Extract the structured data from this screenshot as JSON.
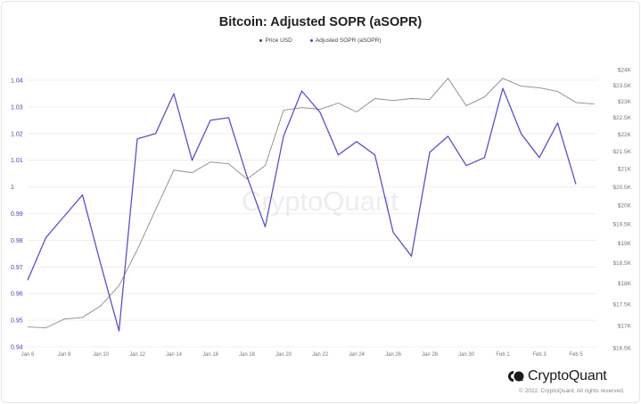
{
  "header": {
    "title": "Bitcoin: Adjusted SOPR (aSOPR)"
  },
  "legend": [
    {
      "label": "Price USD",
      "color": "#444444"
    },
    {
      "label": "Adjusted SOPR (aSOPR)",
      "color": "#4a45b5"
    }
  ],
  "watermark": "CryptoQuant",
  "footer": {
    "brand": "CryptoQuant",
    "copyright": "© 2022. CryptoQuant. All rights reserved."
  },
  "colors": {
    "sopr_line": "#5a52c8",
    "price_line": "#8a8a8a",
    "grid": "#ececf0",
    "left_axis_text": "#4a45b5"
  },
  "chart_data": {
    "type": "line",
    "title": "Bitcoin: Adjusted SOPR (aSOPR)",
    "xlabel": "",
    "ylabel_left": "Adjusted SOPR (aSOPR)",
    "ylabel_right": "Price USD",
    "legend_position": "top",
    "grid": true,
    "x": [
      "Jan 6",
      "Jan 7",
      "Jan 8",
      "Jan 9",
      "Jan 10",
      "Jan 11",
      "Jan 12",
      "Jan 13",
      "Jan 14",
      "Jan 15",
      "Jan 16",
      "Jan 17",
      "Jan 18",
      "Jan 19",
      "Jan 20",
      "Jan 21",
      "Jan 22",
      "Jan 23",
      "Jan 24",
      "Jan 25",
      "Jan 26",
      "Jan 27",
      "Jan 28",
      "Jan 29",
      "Jan 30",
      "Jan 31",
      "Feb 1",
      "Feb 2",
      "Feb 3",
      "Feb 4",
      "Feb 5",
      "Feb 6"
    ],
    "x_tick_labels": [
      "Jan 6",
      "Jan 8",
      "Jan 10",
      "Jan 12",
      "Jan 14",
      "Jan 16",
      "Jan 18",
      "Jan 20",
      "Jan 22",
      "Jan 24",
      "Jan 26",
      "Jan 28",
      "Jan 30",
      "Feb 1",
      "Feb 3",
      "Feb 5"
    ],
    "y_left_ticks": [
      "1.04",
      "1.03",
      "1.02",
      "1.01",
      "1",
      "0.99",
      "0.98",
      "0.97",
      "0.96",
      "0.95",
      "0.94"
    ],
    "y_left_range": [
      0.94,
      1.04
    ],
    "y_right_ticks": [
      "$24K",
      "$23.5K",
      "$23K",
      "$22.5K",
      "$22K",
      "$21.5K",
      "$21K",
      "$20.5K",
      "$20K",
      "$19.5K",
      "$19K",
      "$18.5K",
      "$18K",
      "$17.5K",
      "$17K",
      "$16.5K"
    ],
    "y_right_range": [
      16500,
      24000
    ],
    "y_right_scale": "log",
    "series": [
      {
        "name": "Adjusted SOPR (aSOPR)",
        "axis": "left",
        "values": [
          0.965,
          0.981,
          0.989,
          0.997,
          0.971,
          0.946,
          1.018,
          1.02,
          1.035,
          1.01,
          1.025,
          1.026,
          1.004,
          0.985,
          1.019,
          1.036,
          1.028,
          1.012,
          1.017,
          1.012,
          0.983,
          0.974,
          1.013,
          1.019,
          1.008,
          1.011,
          1.037,
          1.02,
          1.011,
          1.024,
          1.001,
          null
        ]
      },
      {
        "name": "Price USD",
        "axis": "right",
        "values": [
          16970,
          16950,
          17150,
          17190,
          17460,
          17940,
          18830,
          19870,
          20960,
          20890,
          21190,
          21140,
          20710,
          21090,
          22720,
          22800,
          22750,
          22940,
          22670,
          23080,
          23020,
          23080,
          23050,
          23720,
          22860,
          23130,
          23720,
          23470,
          23420,
          23300,
          22960,
          22910
        ]
      }
    ]
  }
}
